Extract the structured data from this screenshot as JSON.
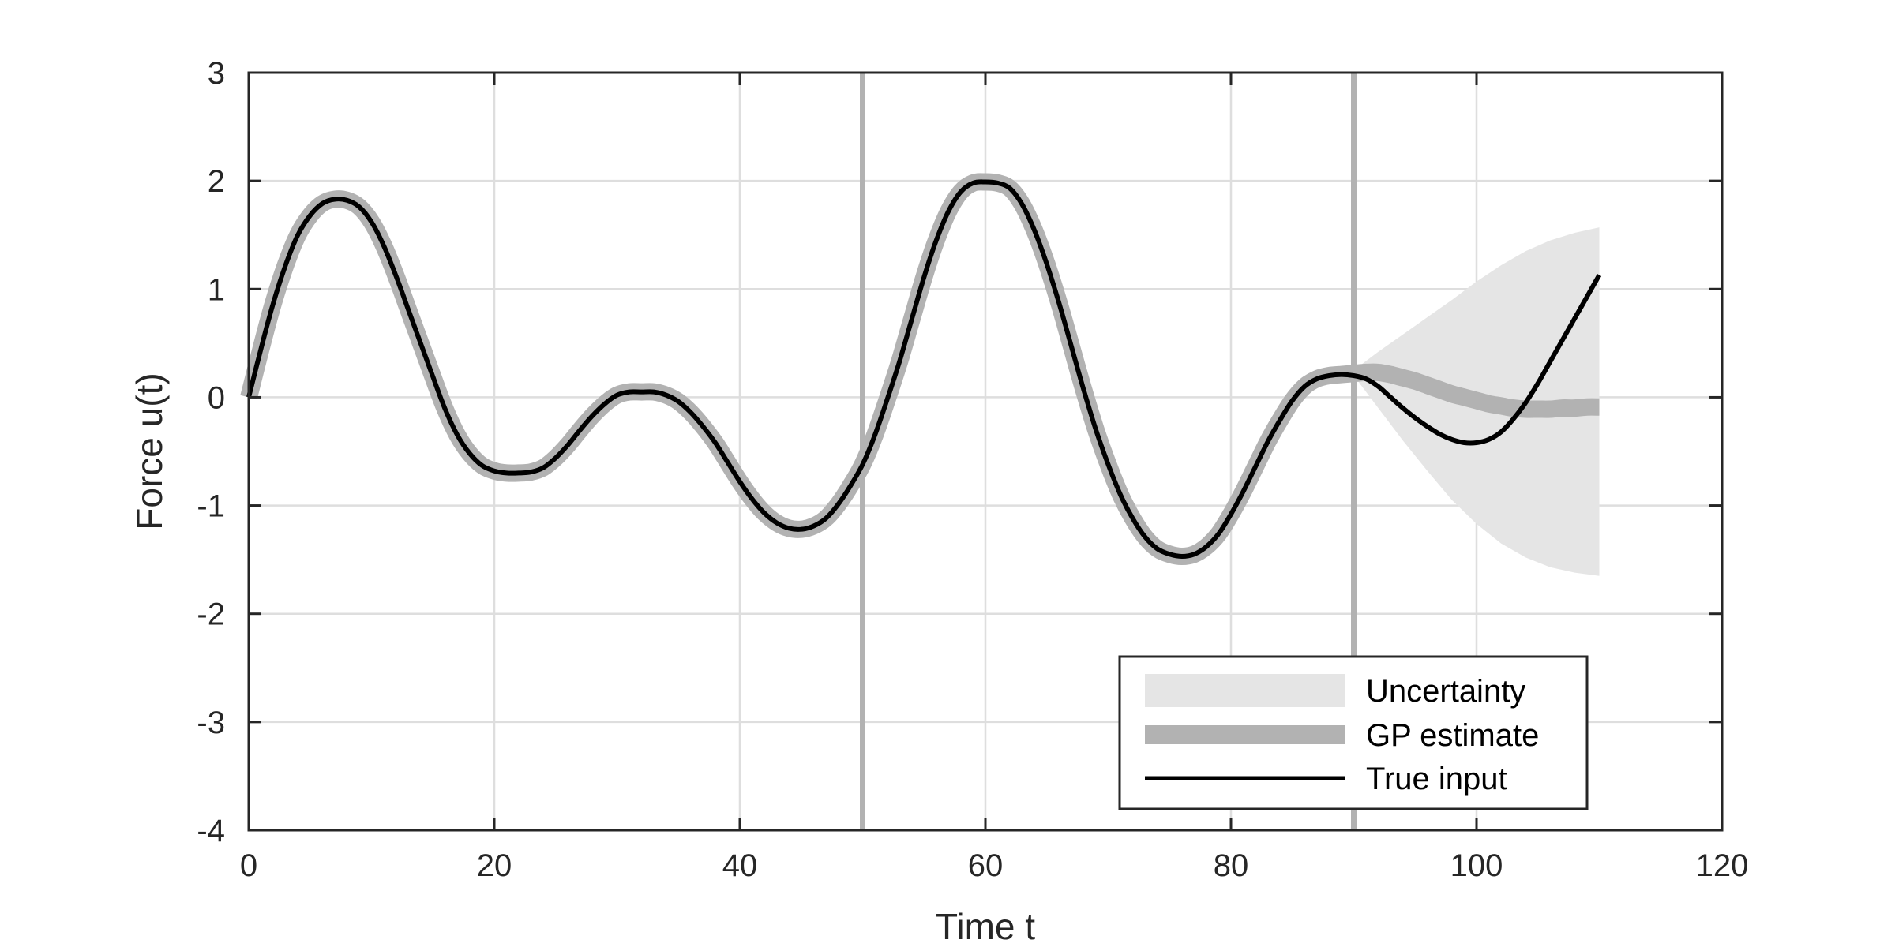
{
  "chart_data": {
    "type": "line",
    "xlabel": "Time t",
    "ylabel": "Force u(t)",
    "xlim": [
      0,
      120
    ],
    "ylim": [
      -4,
      3
    ],
    "xticks": [
      0,
      20,
      40,
      60,
      80,
      100,
      120
    ],
    "yticks": [
      -4,
      -3,
      -2,
      -1,
      0,
      1,
      2,
      3
    ],
    "grid": true,
    "legend_position": "bottom-right",
    "vertical_markers": [
      50,
      90
    ],
    "series": [
      {
        "name": "True input",
        "style": "black-line",
        "color": "#000000",
        "x": [
          0,
          1,
          2,
          3,
          4,
          5,
          6,
          7,
          8,
          9,
          10,
          11,
          12,
          13,
          14,
          15,
          16,
          17,
          18,
          19,
          20,
          21,
          22,
          23,
          24,
          25,
          26,
          27,
          28,
          29,
          30,
          31,
          32,
          33,
          34,
          35,
          36,
          37,
          38,
          39,
          40,
          41,
          42,
          43,
          44,
          45,
          46,
          47,
          48,
          49,
          50,
          51,
          52,
          53,
          54,
          55,
          56,
          57,
          58,
          59,
          60,
          61,
          62,
          63,
          64,
          65,
          66,
          67,
          68,
          69,
          70,
          71,
          72,
          73,
          74,
          75,
          76,
          77,
          78,
          79,
          80,
          81,
          82,
          83,
          84,
          85,
          86,
          87,
          88,
          89,
          90,
          91,
          92,
          93,
          94,
          95,
          96,
          97,
          98,
          99,
          100,
          101,
          102,
          103,
          104,
          105,
          106,
          107,
          108,
          109,
          110
        ],
        "y": [
          0.0,
          0.45,
          0.87,
          1.22,
          1.5,
          1.68,
          1.79,
          1.83,
          1.82,
          1.76,
          1.62,
          1.4,
          1.12,
          0.81,
          0.5,
          0.19,
          -0.11,
          -0.35,
          -0.52,
          -0.63,
          -0.68,
          -0.7,
          -0.7,
          -0.69,
          -0.65,
          -0.56,
          -0.44,
          -0.3,
          -0.17,
          -0.06,
          0.02,
          0.05,
          0.05,
          0.05,
          0.02,
          -0.04,
          -0.14,
          -0.27,
          -0.42,
          -0.6,
          -0.78,
          -0.94,
          -1.07,
          -1.16,
          -1.21,
          -1.22,
          -1.19,
          -1.12,
          -0.99,
          -0.82,
          -0.62,
          -0.35,
          -0.02,
          0.33,
          0.72,
          1.11,
          1.45,
          1.72,
          1.9,
          1.98,
          1.99,
          1.98,
          1.93,
          1.78,
          1.54,
          1.23,
          0.87,
          0.47,
          0.07,
          -0.3,
          -0.62,
          -0.9,
          -1.12,
          -1.29,
          -1.4,
          -1.45,
          -1.47,
          -1.45,
          -1.38,
          -1.26,
          -1.08,
          -0.87,
          -0.64,
          -0.41,
          -0.21,
          -0.03,
          0.1,
          0.17,
          0.2,
          0.21,
          0.2,
          0.17,
          0.1,
          0.0,
          -0.1,
          -0.19,
          -0.27,
          -0.34,
          -0.39,
          -0.42,
          -0.42,
          -0.39,
          -0.32,
          -0.2,
          -0.05,
          0.13,
          0.33,
          0.53,
          0.73,
          0.93,
          1.13
        ]
      },
      {
        "name": "GP estimate",
        "style": "thick-gray-line",
        "color": "#b2b2b2",
        "x": [
          0,
          1,
          2,
          3,
          4,
          5,
          6,
          7,
          8,
          9,
          10,
          11,
          12,
          13,
          14,
          15,
          16,
          17,
          18,
          19,
          20,
          21,
          22,
          23,
          24,
          25,
          26,
          27,
          28,
          29,
          30,
          31,
          32,
          33,
          34,
          35,
          36,
          37,
          38,
          39,
          40,
          41,
          42,
          43,
          44,
          45,
          46,
          47,
          48,
          49,
          50,
          51,
          52,
          53,
          54,
          55,
          56,
          57,
          58,
          59,
          60,
          61,
          62,
          63,
          64,
          65,
          66,
          67,
          68,
          69,
          70,
          71,
          72,
          73,
          74,
          75,
          76,
          77,
          78,
          79,
          80,
          81,
          82,
          83,
          84,
          85,
          86,
          87,
          88,
          89,
          90,
          91,
          92,
          93,
          94,
          95,
          96,
          97,
          98,
          99,
          100,
          101,
          102,
          103,
          104,
          105,
          106,
          107,
          108,
          109,
          110
        ],
        "y": [
          0.0,
          0.45,
          0.87,
          1.22,
          1.5,
          1.68,
          1.79,
          1.83,
          1.82,
          1.76,
          1.62,
          1.4,
          1.12,
          0.81,
          0.5,
          0.19,
          -0.11,
          -0.35,
          -0.52,
          -0.63,
          -0.68,
          -0.7,
          -0.7,
          -0.69,
          -0.65,
          -0.56,
          -0.44,
          -0.3,
          -0.17,
          -0.06,
          0.02,
          0.05,
          0.05,
          0.05,
          0.02,
          -0.04,
          -0.14,
          -0.27,
          -0.42,
          -0.6,
          -0.78,
          -0.94,
          -1.07,
          -1.16,
          -1.21,
          -1.22,
          -1.19,
          -1.12,
          -0.99,
          -0.82,
          -0.62,
          -0.35,
          -0.02,
          0.33,
          0.72,
          1.11,
          1.45,
          1.72,
          1.9,
          1.98,
          1.99,
          1.98,
          1.93,
          1.78,
          1.54,
          1.23,
          0.87,
          0.47,
          0.07,
          -0.3,
          -0.62,
          -0.9,
          -1.12,
          -1.29,
          -1.4,
          -1.45,
          -1.47,
          -1.45,
          -1.38,
          -1.26,
          -1.08,
          -0.87,
          -0.64,
          -0.41,
          -0.21,
          -0.03,
          0.1,
          0.17,
          0.2,
          0.21,
          0.22,
          0.23,
          0.23,
          0.21,
          0.18,
          0.15,
          0.11,
          0.07,
          0.03,
          0.0,
          -0.03,
          -0.06,
          -0.08,
          -0.1,
          -0.11,
          -0.11,
          -0.11,
          -0.1,
          -0.1,
          -0.09,
          -0.09
        ]
      },
      {
        "name": "Uncertainty",
        "style": "light-gray-band",
        "color": "#e5e5e5",
        "x": [
          90,
          92,
          94,
          96,
          98,
          100,
          102,
          104,
          106,
          108,
          110
        ],
        "lower": [
          0.2,
          -0.1,
          -0.4,
          -0.68,
          -0.95,
          -1.17,
          -1.35,
          -1.48,
          -1.57,
          -1.62,
          -1.65
        ],
        "upper": [
          0.25,
          0.42,
          0.58,
          0.74,
          0.9,
          1.07,
          1.22,
          1.35,
          1.45,
          1.52,
          1.57
        ]
      }
    ]
  }
}
